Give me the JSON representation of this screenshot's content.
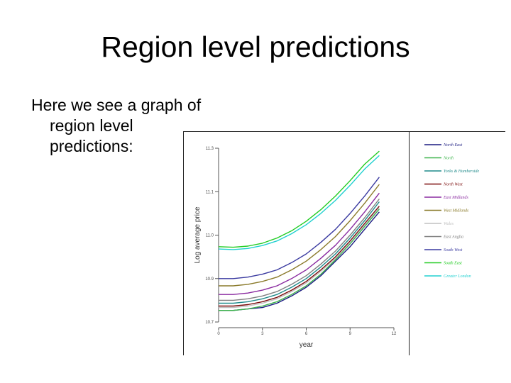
{
  "slide": {
    "title": "Region level predictions",
    "body_lines": [
      "Here we see a graph of",
      "region level",
      "predictions:"
    ]
  },
  "colors": {
    "axis": "#555555",
    "frame": "#222222",
    "North East": "#1a1a80",
    "North": "#3cb44b",
    "Yorks & Humberside": "#1f8a8a",
    "North West": "#7a0a0a",
    "East Midlands": "#8a2aa0",
    "West Midlands": "#8a7a2a",
    "Wales": "#c0c0c0",
    "East Anglia": "#808080",
    "South West": "#3a3aa0",
    "South East": "#22cc22",
    "Greater London": "#20d0d0"
  },
  "chart_data": {
    "type": "line",
    "title": "",
    "xlabel": "year",
    "ylabel": "Log average price",
    "xlim": [
      0,
      12
    ],
    "ylim": [
      10.7,
      11.3
    ],
    "xticks": [
      0,
      3,
      6,
      9,
      12
    ],
    "xtick_labels": [
      "0",
      "3",
      "6",
      "9",
      "12"
    ],
    "yticks": [
      10.7,
      10.85,
      11.0,
      11.15,
      11.3
    ],
    "ytick_labels": [
      "10.7",
      "10.9",
      "11.0",
      "11.1",
      "11.3"
    ],
    "x": [
      0,
      1,
      2,
      3,
      4,
      5,
      6,
      7,
      8,
      9,
      10,
      11
    ],
    "legend_position": "right",
    "series": [
      {
        "name": "North East",
        "values": [
          10.74,
          10.74,
          10.745,
          10.75,
          10.765,
          10.79,
          10.82,
          10.86,
          10.91,
          10.96,
          11.02,
          11.08
        ]
      },
      {
        "name": "North",
        "values": [
          10.74,
          10.74,
          10.745,
          10.755,
          10.77,
          10.795,
          10.825,
          10.865,
          10.915,
          10.97,
          11.03,
          11.09
        ]
      },
      {
        "name": "Yorks & Humberside",
        "values": [
          10.765,
          10.765,
          10.77,
          10.78,
          10.795,
          10.82,
          10.85,
          10.89,
          10.935,
          10.99,
          11.05,
          11.115
        ]
      },
      {
        "name": "North West",
        "values": [
          10.755,
          10.755,
          10.76,
          10.77,
          10.785,
          10.81,
          10.84,
          10.88,
          10.925,
          10.98,
          11.04,
          11.1
        ]
      },
      {
        "name": "East Midlands",
        "values": [
          10.795,
          10.795,
          10.8,
          10.81,
          10.825,
          10.85,
          10.88,
          10.92,
          10.965,
          11.02,
          11.08,
          11.145
        ]
      },
      {
        "name": "West Midlands",
        "values": [
          10.825,
          10.825,
          10.83,
          10.84,
          10.855,
          10.88,
          10.91,
          10.95,
          10.995,
          11.05,
          11.11,
          11.175
        ]
      },
      {
        "name": "Wales",
        "values": [
          10.75,
          10.75,
          10.755,
          10.765,
          10.78,
          10.805,
          10.835,
          10.875,
          10.92,
          10.975,
          11.035,
          11.095
        ]
      },
      {
        "name": "East Anglia",
        "values": [
          10.775,
          10.775,
          10.78,
          10.79,
          10.805,
          10.83,
          10.86,
          10.9,
          10.945,
          11.0,
          11.06,
          11.125
        ]
      },
      {
        "name": "South West",
        "values": [
          10.85,
          10.85,
          10.855,
          10.865,
          10.88,
          10.905,
          10.935,
          10.975,
          11.02,
          11.075,
          11.135,
          11.2
        ]
      },
      {
        "name": "South East",
        "values": [
          10.96,
          10.958,
          10.962,
          10.972,
          10.99,
          11.015,
          11.048,
          11.088,
          11.135,
          11.188,
          11.245,
          11.29
        ]
      },
      {
        "name": "Greater London",
        "values": [
          10.952,
          10.95,
          10.954,
          10.964,
          10.98,
          11.005,
          11.036,
          11.075,
          11.12,
          11.172,
          11.228,
          11.275
        ]
      }
    ]
  }
}
